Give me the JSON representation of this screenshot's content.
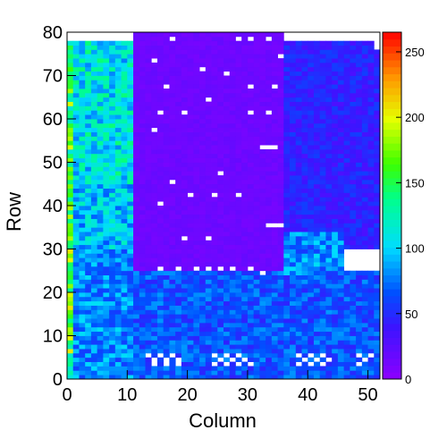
{
  "chart_data": {
    "type": "heatmap",
    "xlabel": "Column",
    "ylabel": "Row",
    "xlim": [
      0,
      52
    ],
    "ylim": [
      0,
      80
    ],
    "zlim": [
      0,
      265
    ],
    "x_ticks": [
      "0",
      "10",
      "20",
      "30",
      "40",
      "50"
    ],
    "y_ticks": [
      "0",
      "10",
      "20",
      "30",
      "40",
      "50",
      "60",
      "70",
      "80"
    ],
    "z_ticks": [
      "0",
      "50",
      "100",
      "150",
      "200",
      "250"
    ],
    "palette": "rainbow (violet → blue → cyan → green → yellow → red)",
    "white_means": "empty / zero cells",
    "value_regions": [
      {
        "columns": [
          0,
          1
        ],
        "rows": [
          0,
          80
        ],
        "value": 160
      },
      {
        "columns": [
          1,
          11
        ],
        "rows": [
          45,
          78
        ],
        "value": 110
      },
      {
        "columns": [
          1,
          11
        ],
        "rows": [
          30,
          45
        ],
        "value": 95
      },
      {
        "columns": [
          1,
          11
        ],
        "rows": [
          0,
          30
        ],
        "value": 80
      },
      {
        "columns": [
          11,
          36
        ],
        "rows": [
          25,
          80
        ],
        "value": 15
      },
      {
        "columns": [
          36,
          52
        ],
        "rows": [
          30,
          78
        ],
        "value": 45
      },
      {
        "columns": [
          11,
          52
        ],
        "rows": [
          0,
          25
        ],
        "value": 65
      },
      {
        "columns": [
          36,
          46
        ],
        "rows": [
          24,
          34
        ],
        "value": 80
      }
    ],
    "empty_cells": [
      [
        13,
        5
      ],
      [
        14,
        4
      ],
      [
        15,
        5
      ],
      [
        16,
        4
      ],
      [
        17,
        5
      ],
      [
        18,
        4
      ],
      [
        16,
        3
      ],
      [
        14,
        3
      ],
      [
        18,
        3
      ],
      [
        24,
        5
      ],
      [
        25,
        4
      ],
      [
        26,
        5
      ],
      [
        27,
        4
      ],
      [
        28,
        5
      ],
      [
        29,
        4
      ],
      [
        30,
        3
      ],
      [
        26,
        3
      ],
      [
        28,
        3
      ],
      [
        24,
        3
      ],
      [
        38,
        5
      ],
      [
        39,
        4
      ],
      [
        40,
        5
      ],
      [
        41,
        4
      ],
      [
        42,
        5
      ],
      [
        43,
        4
      ],
      [
        40,
        3
      ],
      [
        42,
        3
      ],
      [
        38,
        3
      ],
      [
        48,
        5
      ],
      [
        49,
        4
      ],
      [
        50,
        5
      ],
      [
        48,
        3
      ],
      [
        15,
        25
      ],
      [
        18,
        25
      ],
      [
        21,
        25
      ],
      [
        23,
        25
      ],
      [
        25,
        25
      ],
      [
        27,
        25
      ],
      [
        30,
        25
      ],
      [
        32,
        24
      ],
      [
        19,
        32
      ],
      [
        23,
        32
      ],
      [
        33,
        35
      ],
      [
        34,
        35
      ],
      [
        35,
        35
      ],
      [
        15,
        40
      ],
      [
        20,
        42
      ],
      [
        24,
        42
      ],
      [
        28,
        42
      ],
      [
        17,
        45
      ],
      [
        25,
        47
      ],
      [
        32,
        53
      ],
      [
        33,
        53
      ],
      [
        34,
        53
      ],
      [
        14,
        57
      ],
      [
        15,
        61
      ],
      [
        19,
        61
      ],
      [
        33,
        61
      ],
      [
        30,
        61
      ],
      [
        23,
        64
      ],
      [
        16,
        67
      ],
      [
        30,
        67
      ],
      [
        34,
        67
      ],
      [
        22,
        71
      ],
      [
        26,
        70
      ],
      [
        14,
        73
      ],
      [
        35,
        74
      ],
      [
        17,
        78
      ],
      [
        28,
        78
      ],
      [
        30,
        78
      ],
      [
        33,
        78
      ],
      [
        40,
        78
      ]
    ]
  }
}
